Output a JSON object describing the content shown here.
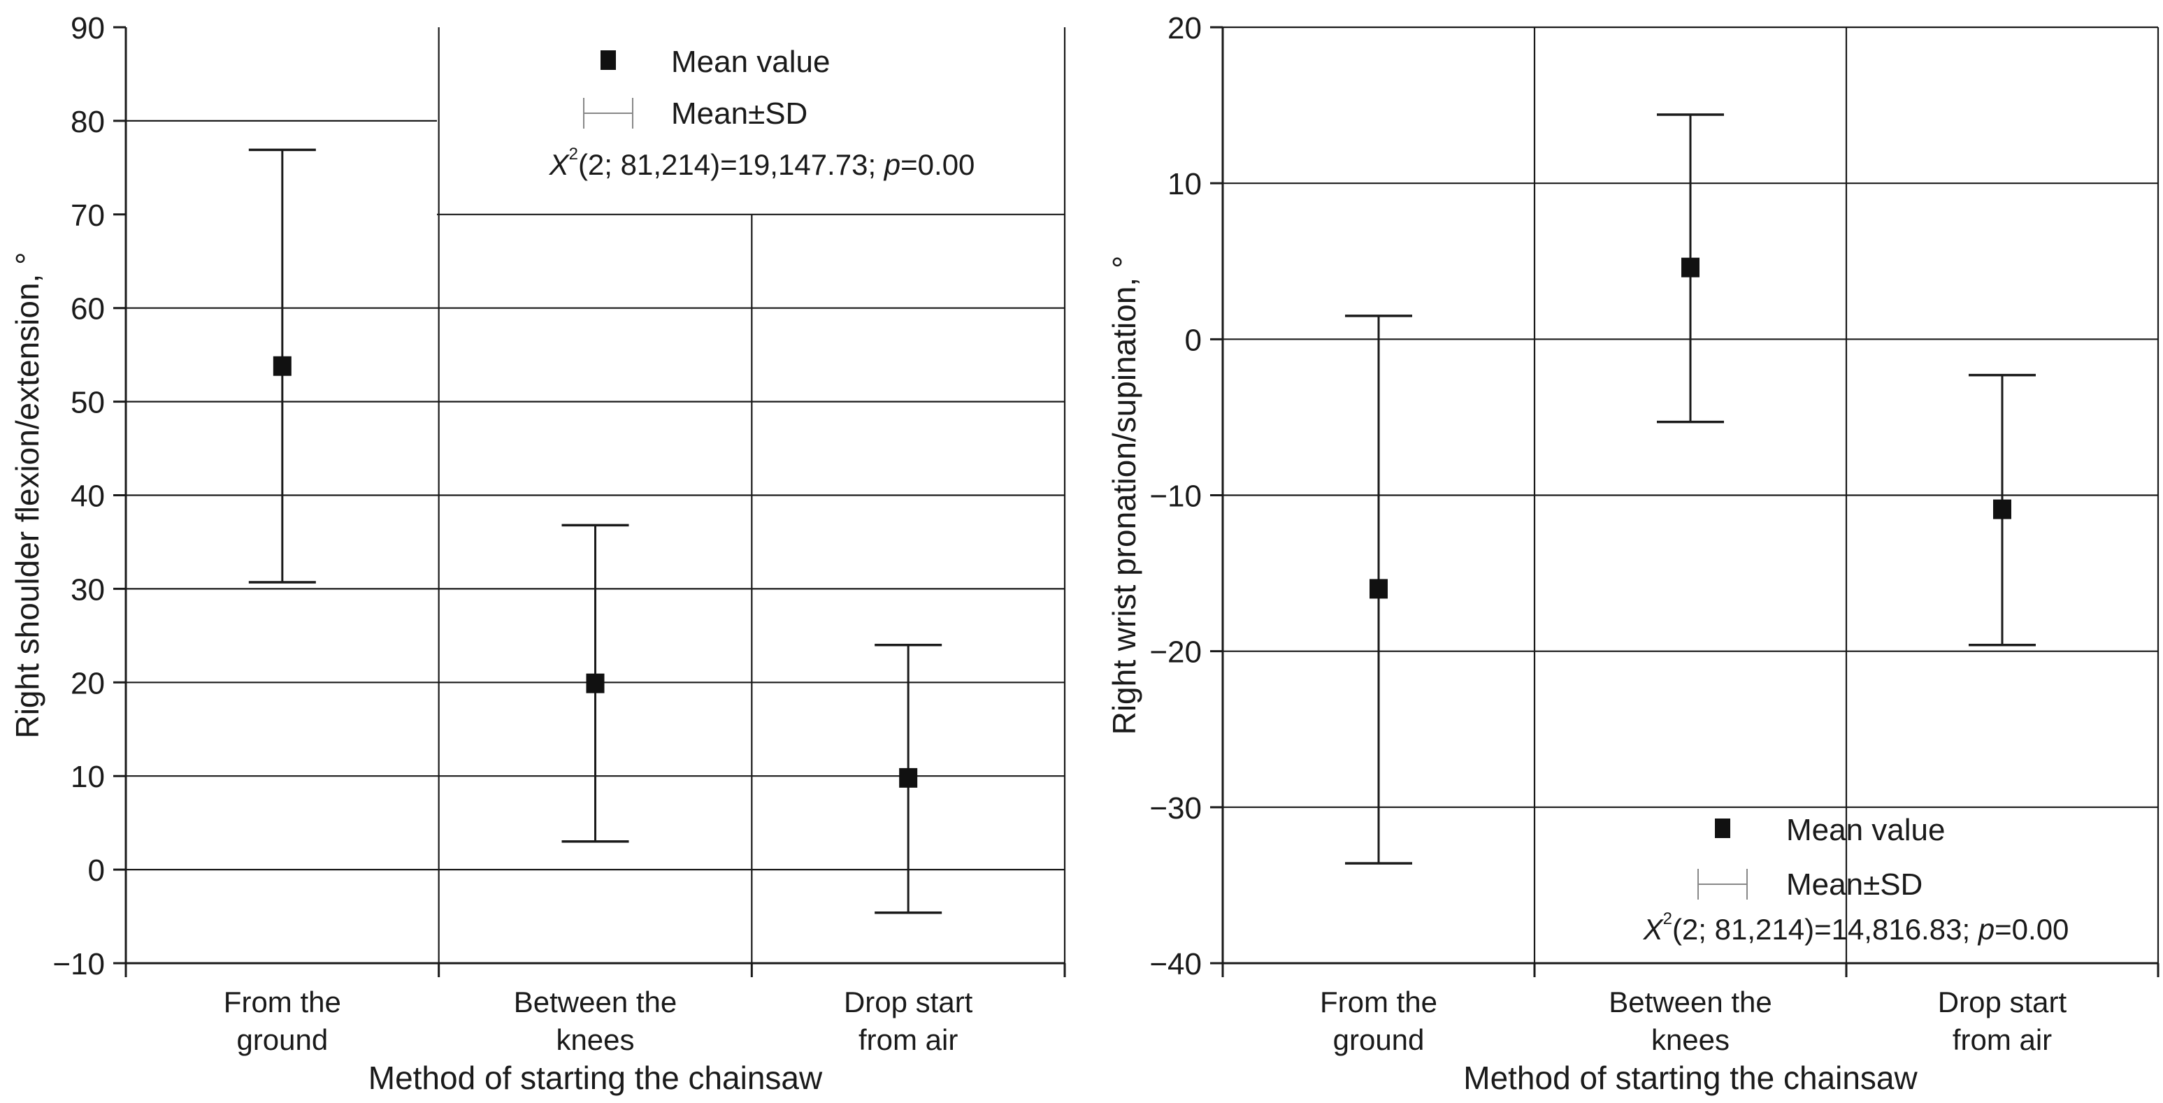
{
  "chart_data": [
    {
      "type": "errorbar",
      "ylabel": "Right shoulder flexion/extension, °",
      "xlabel": "Method of starting the chainsaw",
      "categories": [
        [
          "From the",
          "ground"
        ],
        [
          "Between the",
          "knees"
        ],
        [
          "Drop start",
          "from air"
        ]
      ],
      "ylim": [
        -10,
        90
      ],
      "yticks": [
        90,
        80,
        70,
        60,
        50,
        40,
        30,
        20,
        10,
        0,
        -10
      ],
      "ytick_labels": [
        "90",
        "80",
        "70",
        "60",
        "50",
        "40",
        "30",
        "20",
        "10",
        "0",
        "−10"
      ],
      "grid": true,
      "series": [
        {
          "name": "Mean value",
          "mean": [
            53.8,
            19.9,
            9.8
          ],
          "lower": [
            30.7,
            3.0,
            -4.6
          ],
          "upper": [
            76.9,
            36.8,
            24.0
          ]
        }
      ],
      "legend": {
        "placement": "top-center",
        "mean_label": "Mean value",
        "sd_label": "Mean±SD",
        "stat_prefix": "X",
        "stat_superscript": "2",
        "stat_body": "(2; 81,214)=19,147.73; ",
        "stat_p_symbol": "p",
        "stat_p_value": "=0.00"
      }
    },
    {
      "type": "errorbar",
      "ylabel": "Right wrist pronation/supination, °",
      "xlabel": "Method of starting the chainsaw",
      "categories": [
        [
          "From the",
          "ground"
        ],
        [
          "Between the",
          "knees"
        ],
        [
          "Drop start",
          "from air"
        ]
      ],
      "ylim": [
        -40,
        20
      ],
      "yticks": [
        20,
        10,
        0,
        -10,
        -20,
        -30,
        -40
      ],
      "ytick_labels": [
        "20",
        "10",
        "0",
        "−10",
        "−20",
        "−30",
        "−40"
      ],
      "grid": true,
      "series": [
        {
          "name": "Mean value",
          "mean": [
            -16.0,
            4.6,
            -10.9
          ],
          "lower": [
            -33.6,
            -5.3,
            -19.6
          ],
          "upper": [
            1.5,
            14.4,
            -2.3
          ]
        }
      ],
      "legend": {
        "placement": "bottom-right",
        "mean_label": "Mean value",
        "sd_label": "Mean±SD",
        "stat_prefix": "X",
        "stat_superscript": "2",
        "stat_body": "(2; 81,214)=14,816.83; ",
        "stat_p_symbol": "p",
        "stat_p_value": "=0.00"
      }
    }
  ]
}
